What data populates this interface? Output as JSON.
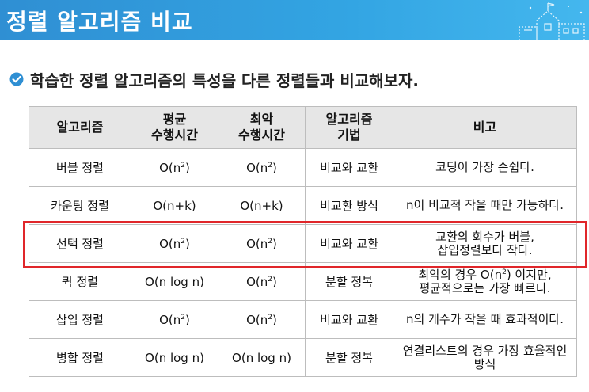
{
  "header": {
    "title": "정렬 알고리즘 비교",
    "banner_color": "#33a5e3"
  },
  "subtitle": "학습한 정렬 알고리즘의 특성을 다른 정렬들과 비교해보자.",
  "table": {
    "headers": [
      "알고리즘",
      "평균\n수행시간",
      "최악\n수행시간",
      "알고리즘\n기법",
      "비고"
    ],
    "rows": [
      {
        "name": "버블 정렬",
        "avg": "O(n2)",
        "worst": "O(n2)",
        "technique": "비교와 교환",
        "note": "코딩이 가장 손쉽다."
      },
      {
        "name": "카운팅 정렬",
        "avg": "O(n+k)",
        "worst": "O(n+k)",
        "technique": "비교환 방식",
        "note": "n이 비교적 작을 때만 가능하다."
      },
      {
        "name": "선택 정렬",
        "avg": "O(n2)",
        "worst": "O(n2)",
        "technique": "비교와 교환",
        "note": "교환의 회수가 버블,\n삽입정렬보다 작다."
      },
      {
        "name": "퀵 정렬",
        "avg": "O(n log n)",
        "worst": "O(n2)",
        "technique": "분할 정복",
        "note": "최악의 경우 O(n2) 이지만,\n평균적으로는 가장 빠르다."
      },
      {
        "name": "삽입 정렬",
        "avg": "O(n2)",
        "worst": "O(n2)",
        "technique": "비교와 교환",
        "note": "n의 개수가 작을 때 효과적이다."
      },
      {
        "name": "병합 정렬",
        "avg": "O(n log n)",
        "worst": "O(n log n)",
        "technique": "분할 정복",
        "note": "연결리스트의 경우 가장 효율적인\n방식"
      }
    ],
    "highlight_row": "선택 정렬",
    "highlight_color": "#e0262a"
  }
}
